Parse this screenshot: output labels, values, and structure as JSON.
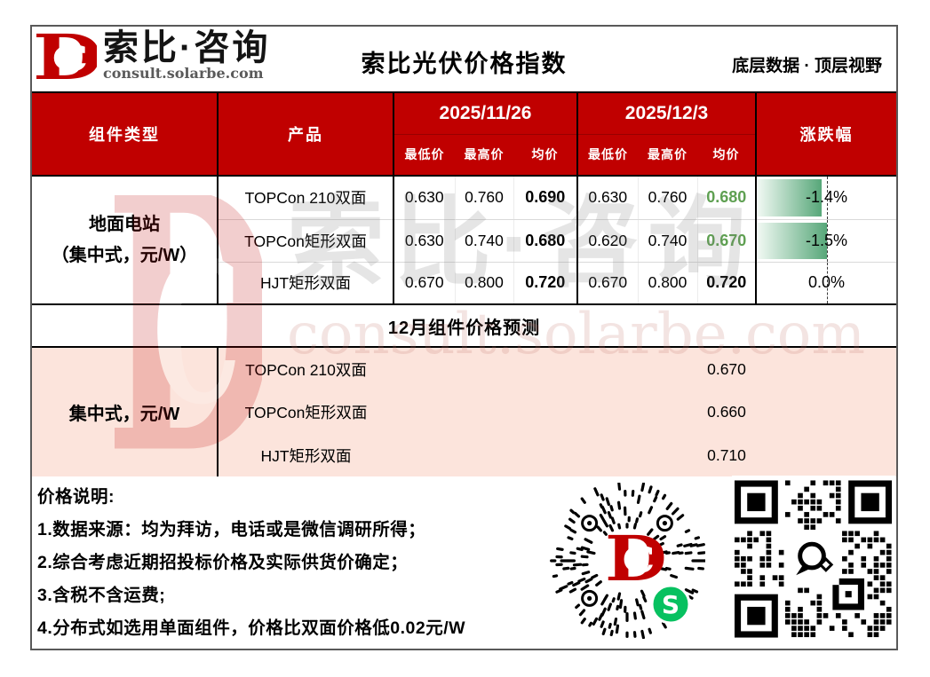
{
  "brand": {
    "name": "索比·咨询",
    "url": "consult.solarbe.com"
  },
  "header": {
    "title": "索比光伏价格指数",
    "slogan": "底层数据 · 顶层视野"
  },
  "table": {
    "headers": {
      "module_type": "组件类型",
      "product": "产品",
      "change": "涨跌幅"
    },
    "date_groups": [
      {
        "date": "2025/11/26",
        "subcols": [
          "最低价",
          "最高价",
          "均价"
        ]
      },
      {
        "date": "2025/12/3",
        "subcols": [
          "最低价",
          "最高价",
          "均价"
        ]
      }
    ],
    "group_label": {
      "line1": "地面电站",
      "line2": "（集中式，元/W）"
    },
    "rows": [
      {
        "product": "TOPCon 210双面",
        "d1_low": "0.630",
        "d1_high": "0.760",
        "d1_avg": "0.690",
        "d2_low": "0.630",
        "d2_high": "0.760",
        "d2_avg": "0.680",
        "change": "-1.4%",
        "bar_pct": 93
      },
      {
        "product": "TOPCon矩形双面",
        "d1_low": "0.630",
        "d1_high": "0.740",
        "d1_avg": "0.680",
        "d2_low": "0.620",
        "d2_high": "0.740",
        "d2_avg": "0.670",
        "change": "-1.5%",
        "bar_pct": 100
      },
      {
        "product": "HJT矩形双面",
        "d1_low": "0.670",
        "d1_high": "0.800",
        "d1_avg": "0.720",
        "d2_low": "0.670",
        "d2_high": "0.800",
        "d2_avg": "0.720",
        "change": "0.0%",
        "bar_pct": 0
      }
    ]
  },
  "forecast": {
    "title": "12月组件价格预测",
    "group_label": "集中式，元/W",
    "rows": [
      {
        "product": "TOPCon 210双面",
        "value": "0.670"
      },
      {
        "product": "TOPCon矩形双面",
        "value": "0.660"
      },
      {
        "product": "HJT矩形双面",
        "value": "0.710"
      }
    ]
  },
  "notes": {
    "title": "价格说明:",
    "items": [
      "1.数据来源：均为拜访，电话或是微信调研所得；",
      "2.综合考虑近期招投标价格及实际供货价确定；",
      "3.含税不含运费;",
      "4.分布式如选用单面组件，价格比双面价格低0.02元/W"
    ]
  },
  "watermark": {
    "text": "索比·咨询",
    "url": "consult.solarbe.com"
  },
  "icons": {
    "logo": "solarbe-dc-logo",
    "left_qr": "wechat-miniprogram-qr",
    "right_qr": "wechat-qr"
  },
  "colors": {
    "header_red": "#C00000",
    "pink_bg": "#FCE4DC",
    "green_text": "#5FA052",
    "databar_green": "#63BE7B"
  }
}
